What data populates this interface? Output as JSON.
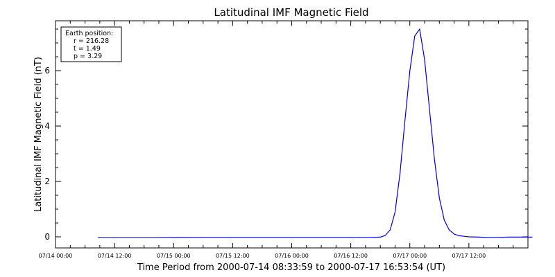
{
  "chart_data": {
    "type": "line",
    "title": "Latitudinal IMF Magnetic Field",
    "xlabel": "Time Period from 2000-07-14 08:33:59 to 2000-07-17 16:53:54 (UT)",
    "ylabel": "Latitudinal IMF Magnetic Field (nT)",
    "x_tick_labels": [
      "07/14 00:00",
      "07/14 12:00",
      "07/15 00:00",
      "07/15 12:00",
      "07/16 00:00",
      "07/16 12:00",
      "07/17 00:00",
      "07/17 12:00"
    ],
    "y_ticks": [
      0,
      2,
      4,
      6
    ],
    "ylim": [
      -0.4,
      7.8
    ],
    "xlim_hours": [
      0,
      96
    ],
    "grid": false,
    "line_color": "#0000cc",
    "legend": {
      "heading": "Earth position:",
      "lines": [
        "r = 216.28",
        "t = 1.49",
        "p = 3.29"
      ],
      "placement": "top-left"
    },
    "series": [
      {
        "x_hours": [
          8.57,
          20,
          30,
          40,
          50,
          60,
          64,
          66,
          67,
          68,
          69,
          70,
          71,
          72,
          73,
          74,
          75,
          76,
          77,
          78,
          79,
          80,
          81,
          82,
          83,
          84,
          86,
          88,
          90,
          92,
          96.9
        ],
        "values": [
          -0.03,
          -0.03,
          -0.02,
          -0.02,
          -0.02,
          -0.02,
          -0.02,
          -0.01,
          0.05,
          0.25,
          0.9,
          2.3,
          4.2,
          6.0,
          7.25,
          7.5,
          6.4,
          4.6,
          2.8,
          1.4,
          0.6,
          0.25,
          0.1,
          0.04,
          0.02,
          0.0,
          -0.01,
          -0.02,
          -0.02,
          -0.01,
          -0.01
        ]
      }
    ]
  }
}
